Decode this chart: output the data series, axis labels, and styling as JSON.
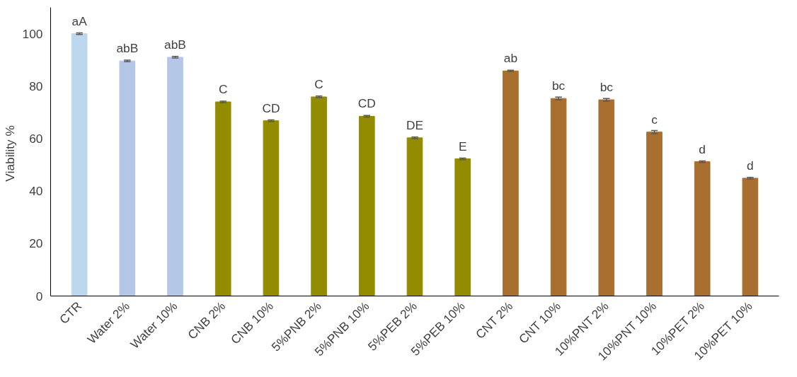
{
  "chart_data": {
    "type": "bar",
    "ylabel": "Viability  %",
    "categories": [
      "CTR",
      "Water 2%",
      "Water 10%",
      "CNB 2%",
      "CNB 10%",
      "5%PNB 2%",
      "5%PNB 10%",
      "5%PEB 2%",
      "5%PEB 10%",
      "CNT 2%",
      "CNT 10%",
      "10%PNT 2%",
      "10%PNT 10%",
      "10%PET 2%",
      "10%PET 10%"
    ],
    "values": [
      100,
      89.6,
      91.0,
      74.0,
      66.8,
      75.9,
      68.5,
      60.3,
      52.3,
      85.8,
      75.3,
      74.8,
      62.5,
      51.2,
      44.9
    ],
    "errors": [
      0.3,
      0.3,
      0.3,
      0.3,
      0.3,
      0.3,
      0.3,
      0.3,
      0.3,
      0.3,
      0.5,
      0.5,
      0.6,
      0.3,
      0.3
    ],
    "colors": [
      "#bdd7ee",
      "#b4c7e7",
      "#b4c7e7",
      "#948c00",
      "#948c00",
      "#948c00",
      "#948c00",
      "#948c00",
      "#948c00",
      "#a86f30",
      "#a86f30",
      "#a86f30",
      "#a86f30",
      "#a86f30",
      "#a86f30"
    ],
    "ylim": [
      0,
      110
    ],
    "yticks": [
      0,
      20,
      40,
      60,
      80,
      100
    ],
    "grid": false,
    "annotations": [
      {
        "text": "aA",
        "x": "CTR",
        "y": 100
      },
      {
        "text": "abB",
        "x": "Water 2%",
        "y": 89.6
      },
      {
        "text": "abB",
        "x": "Water 10%",
        "y": 91.0
      },
      {
        "text": "C",
        "x": "CNB 2%",
        "y": 74.0
      },
      {
        "text": "CD",
        "x": "CNB 10%",
        "y": 66.8
      },
      {
        "text": "C",
        "x": "5%PNB 2%",
        "y": 75.9
      },
      {
        "text": "CD",
        "x": "5%PNB 10%",
        "y": 68.5
      },
      {
        "text": "DE",
        "x": "5%PEB 2%",
        "y": 60.3
      },
      {
        "text": "E",
        "x": "5%PEB 10%",
        "y": 52.3
      },
      {
        "text": "ab",
        "x": "CNT 2%",
        "y": 85.8
      },
      {
        "text": "bc",
        "x": "CNT 10%",
        "y": 75.3
      },
      {
        "text": "bc",
        "x": "10%PNT 2%",
        "y": 74.8
      },
      {
        "text": "c",
        "x": "10%PNT 10%",
        "y": 62.5
      },
      {
        "text": "d",
        "x": "10%PET 2%",
        "y": 51.2
      },
      {
        "text": "d",
        "x": "10%PET 10%",
        "y": 44.9
      }
    ]
  }
}
